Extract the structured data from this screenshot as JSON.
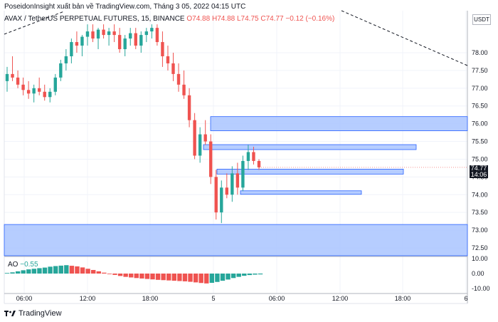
{
  "header": {
    "text": "PoseidonInsight xuất bản về TradingView.com, Tháng 3 05, 2022 04:15 UTC"
  },
  "legend": {
    "symbol": "AVAX / TetherUS PERPETUAL FUTURES, 15, BINANCE",
    "open": "O74.88",
    "high": "H74.88",
    "low": "L74.75",
    "close": "C74.77",
    "change": "−0.12 (−0.16%)"
  },
  "currency": "USDT",
  "last_price": {
    "value": "74.77",
    "countdown": "14:06"
  },
  "indicator": {
    "name": "AO",
    "value": "−0.55"
  },
  "footer": {
    "brand": "TradingView"
  },
  "colors": {
    "up": "#26a69a",
    "down": "#ef5350",
    "zone": "#a9c4ff",
    "zone_border": "#2962ff"
  },
  "chart_data": {
    "type": "candlestick",
    "price_axis": {
      "ticks": [
        "78.00",
        "77.50",
        "77.00",
        "76.50",
        "76.00",
        "75.50",
        "75.00",
        "74.50",
        "74.00",
        "73.50",
        "73.00",
        "72.50"
      ]
    },
    "ao_axis": {
      "ticks": [
        "10.00",
        "0.00",
        "-10.00"
      ]
    },
    "time_axis": {
      "ticks": [
        "06:00",
        "12:00",
        "18:00",
        "5",
        "06:00",
        "12:00",
        "18:00",
        "6"
      ]
    },
    "price_range": [
      72.25,
      78.7
    ],
    "zones": [
      {
        "from": 74.8,
        "to": 74.93,
        "lo": 75.8,
        "hi": 76.2
      },
      {
        "from": 74.8,
        "to": 74.93,
        "lo": 75.27,
        "hi": 75.41
      },
      {
        "from": 74.8,
        "to": 74.93,
        "lo": 74.58,
        "hi": 74.72
      },
      {
        "from": 74.8,
        "to": 74.93,
        "lo": 74.01,
        "hi": 74.11
      },
      {
        "from": 74.8,
        "to": 74.93,
        "lo": 72.28,
        "hi": 73.16
      }
    ],
    "candles": [
      [
        77.2,
        77.6,
        76.9,
        77.4
      ],
      [
        77.4,
        77.9,
        77.2,
        77.3
      ],
      [
        77.3,
        77.5,
        77.0,
        77.1
      ],
      [
        77.1,
        77.3,
        76.8,
        76.95
      ],
      [
        76.95,
        77.2,
        76.7,
        76.85
      ],
      [
        76.85,
        77.1,
        76.6,
        77.0
      ],
      [
        77.0,
        77.3,
        76.8,
        76.9
      ],
      [
        76.9,
        77.1,
        76.65,
        76.75
      ],
      [
        76.75,
        77.0,
        76.6,
        76.9
      ],
      [
        76.9,
        77.4,
        76.8,
        77.3
      ],
      [
        77.3,
        77.8,
        77.2,
        77.7
      ],
      [
        77.7,
        78.1,
        77.5,
        77.9
      ],
      [
        77.9,
        78.4,
        77.7,
        78.3
      ],
      [
        78.3,
        78.6,
        78.0,
        78.2
      ],
      [
        78.2,
        78.5,
        77.9,
        78.45
      ],
      [
        78.45,
        78.8,
        78.2,
        78.6
      ],
      [
        78.6,
        78.8,
        78.3,
        78.4
      ],
      [
        78.4,
        78.7,
        78.1,
        78.65
      ],
      [
        78.65,
        78.8,
        78.4,
        78.5
      ],
      [
        78.5,
        78.7,
        78.2,
        78.6
      ],
      [
        78.6,
        78.8,
        78.3,
        78.5
      ],
      [
        78.5,
        78.7,
        78.0,
        78.1
      ],
      [
        78.1,
        78.5,
        77.9,
        78.4
      ],
      [
        78.4,
        78.7,
        78.2,
        78.55
      ],
      [
        78.55,
        78.7,
        78.1,
        78.2
      ],
      [
        78.2,
        78.6,
        78.0,
        78.5
      ],
      [
        78.5,
        78.7,
        78.3,
        78.6
      ],
      [
        78.6,
        78.8,
        78.4,
        78.7
      ],
      [
        78.7,
        78.8,
        78.2,
        78.3
      ],
      [
        78.3,
        78.6,
        77.6,
        77.9
      ],
      [
        77.9,
        78.2,
        77.5,
        77.7
      ],
      [
        77.7,
        78.0,
        77.2,
        77.4
      ],
      [
        77.4,
        77.7,
        76.9,
        77.1
      ],
      [
        77.1,
        77.5,
        76.7,
        76.8
      ],
      [
        76.8,
        77.0,
        75.9,
        76.1
      ],
      [
        76.1,
        76.3,
        75.0,
        75.1
      ],
      [
        75.1,
        75.9,
        74.9,
        75.7
      ],
      [
        75.7,
        76.1,
        75.4,
        75.5
      ],
      [
        75.5,
        75.7,
        74.3,
        74.5
      ],
      [
        74.5,
        74.7,
        73.3,
        73.5
      ],
      [
        73.5,
        74.4,
        73.2,
        74.2
      ],
      [
        74.2,
        74.6,
        73.9,
        74.0
      ],
      [
        74.0,
        74.8,
        73.8,
        74.6
      ],
      [
        74.6,
        74.9,
        74.0,
        74.2
      ],
      [
        74.2,
        75.1,
        74.1,
        74.95
      ],
      [
        74.95,
        75.4,
        74.7,
        75.2
      ],
      [
        75.2,
        75.35,
        74.85,
        74.95
      ],
      [
        74.95,
        75.0,
        74.7,
        74.77
      ]
    ],
    "ao": [
      0.4,
      0.8,
      1.5,
      2.2,
      2.8,
      3.2,
      3.6,
      4.0,
      4.6,
      5.0,
      5.3,
      5.6,
      5.2,
      4.8,
      4.1,
      3.2,
      2.4,
      1.5,
      0.6,
      -0.2,
      -0.9,
      -1.6,
      -2.2,
      -2.6,
      -3.0,
      -3.3,
      -3.6,
      -3.9,
      -4.2,
      -4.4,
      -4.6,
      -4.8,
      -5.0,
      -5.2,
      -5.5,
      -5.9,
      -6.3,
      -6.6,
      -6.2,
      -5.6,
      -4.8,
      -4.0,
      -3.0,
      -2.2,
      -1.5,
      -1.0,
      -0.7,
      -0.55
    ]
  }
}
